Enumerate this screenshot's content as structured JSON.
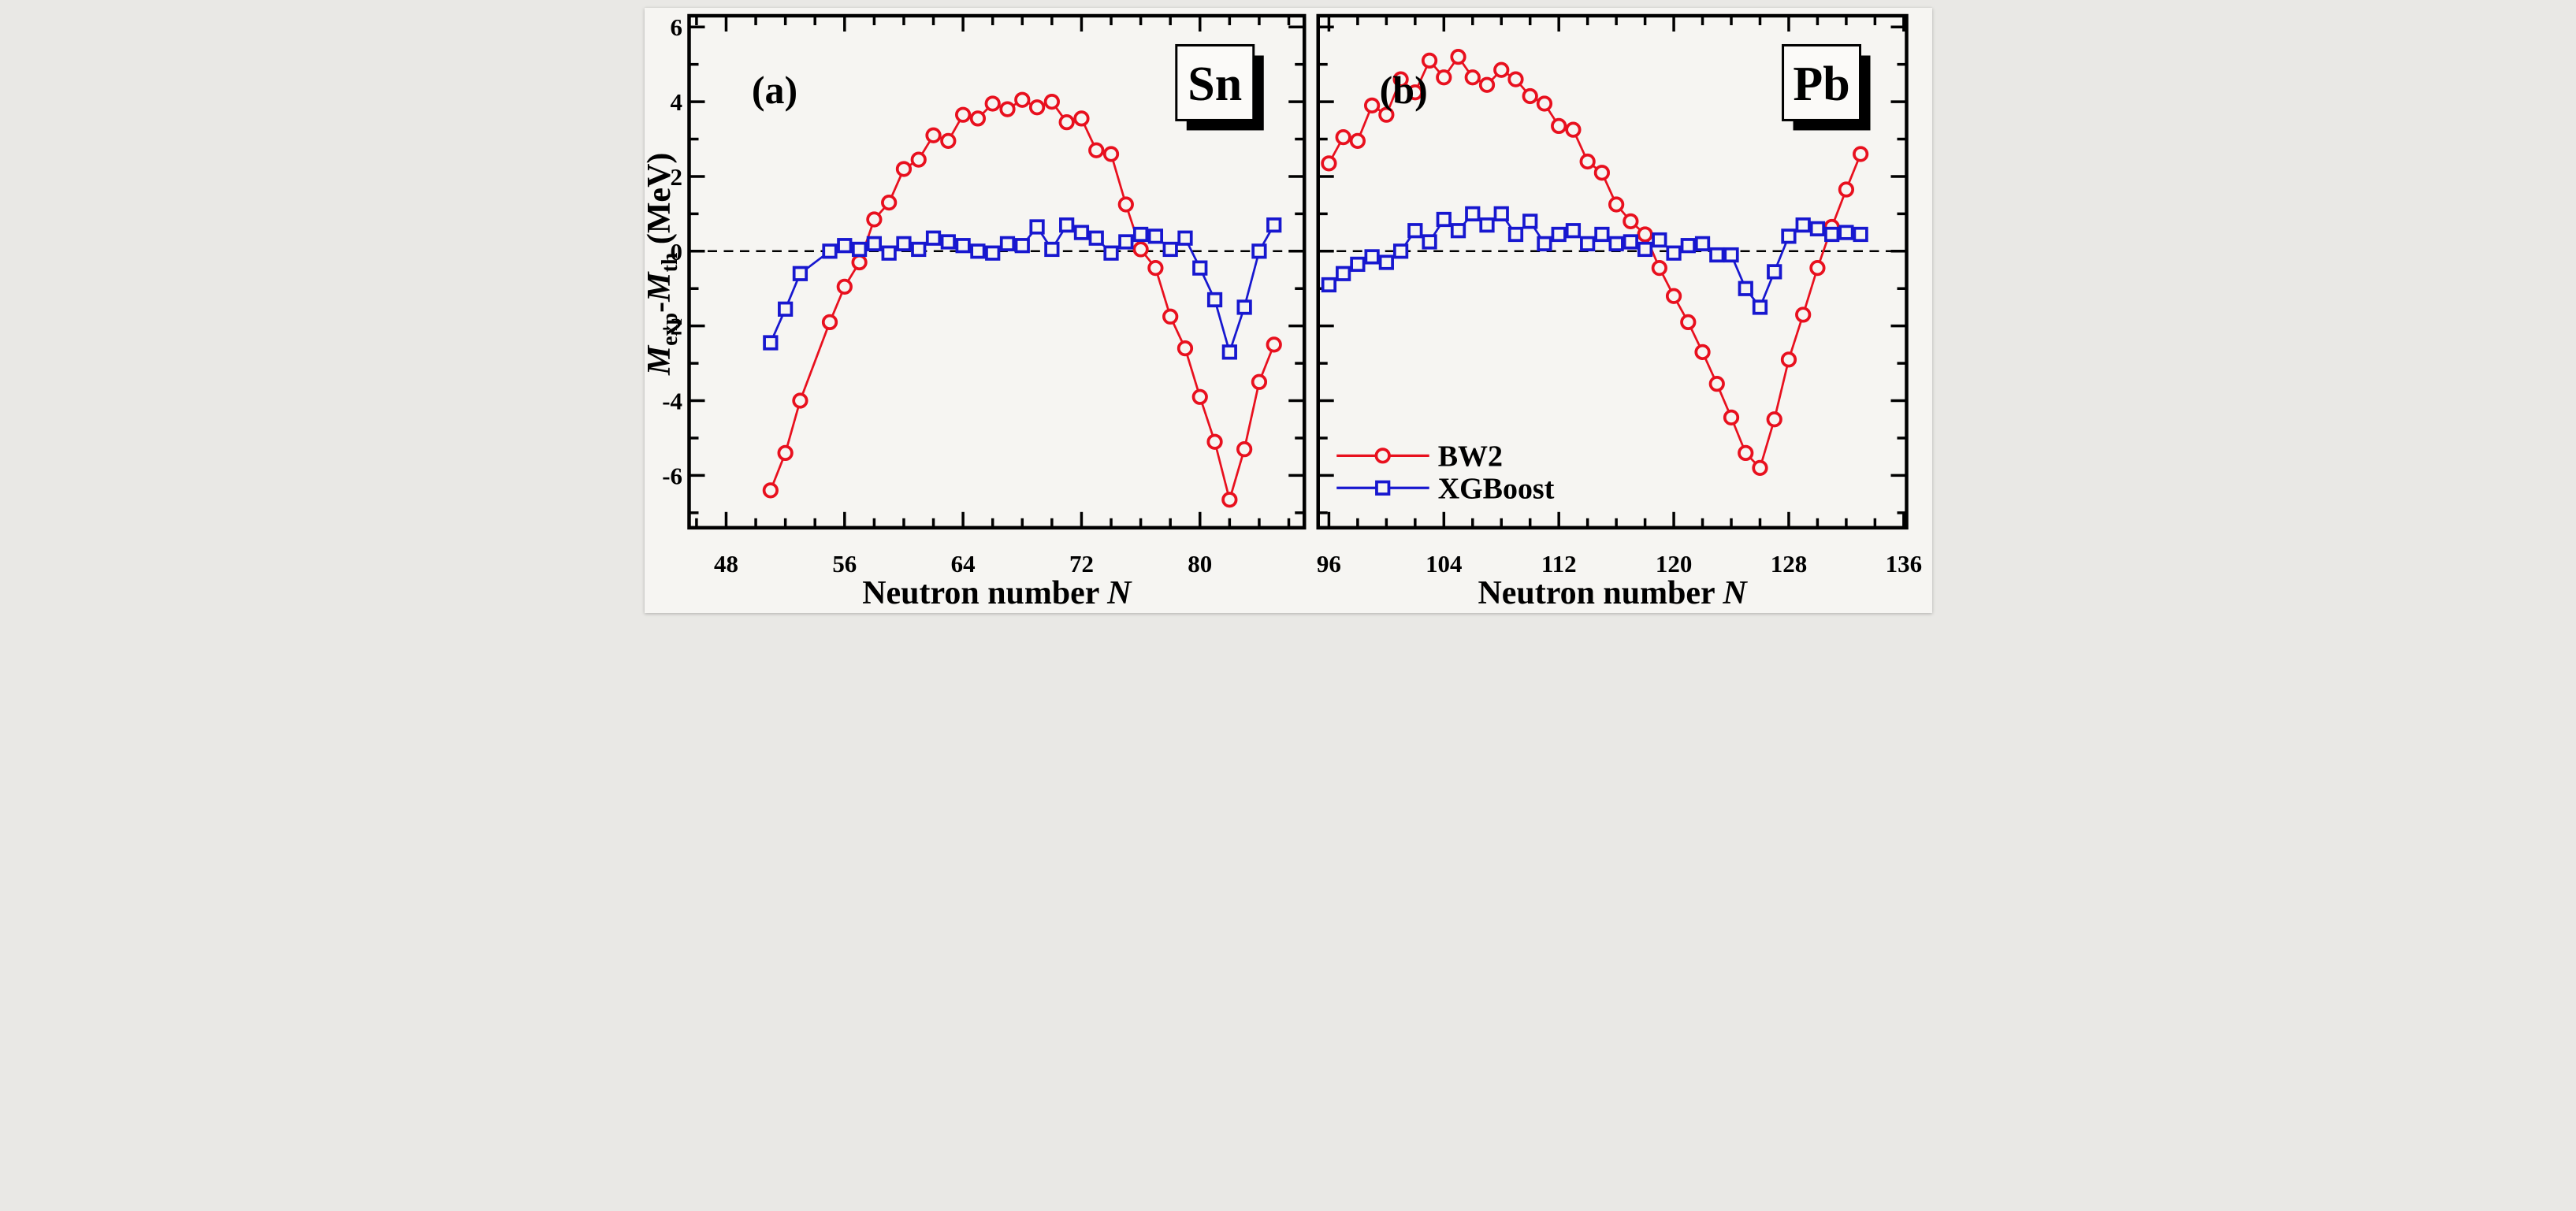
{
  "figure": {
    "background": "#f6f5f2",
    "frame_color": "#000000",
    "zero_line_color": "#000000",
    "y_axis_label": {
      "m1": "M",
      "sub1": "exp",
      "minus": "-",
      "m2": "M",
      "sub2": "th",
      "unit": " (MeV)"
    },
    "x_axis_title": {
      "text": "Neutron number ",
      "italic_symbol": "N"
    }
  },
  "legend": {
    "items": [
      {
        "label": "BW2",
        "color": "#e8101e",
        "marker": "circle"
      },
      {
        "label": "XGBoost",
        "color": "#1717cf",
        "marker": "square"
      }
    ]
  },
  "chart_data": [
    {
      "type": "line",
      "panel_label": "(a)",
      "element_label": "Sn",
      "xlabel": "Neutron number N",
      "ylabel": "Mexp-Mth (MeV)",
      "xlim": [
        45.5,
        87.05
      ],
      "ylim": [
        -7.4,
        6.3
      ],
      "x_ticks_major": [
        48,
        56,
        64,
        72,
        80
      ],
      "x_tick_minor_step": 2,
      "y_ticks_major": [
        -6,
        -4,
        -2,
        0,
        2,
        4,
        6
      ],
      "y_tick_minor_step": 1,
      "grid": false,
      "zero_line": 0,
      "series": [
        {
          "name": "BW2",
          "color": "#e8101e",
          "marker": "circle",
          "points": [
            [
              51,
              -6.4
            ],
            [
              52,
              -5.4
            ],
            [
              53,
              -4.0
            ],
            [
              55,
              -1.9
            ],
            [
              56,
              -0.95
            ],
            [
              57,
              -0.3
            ],
            [
              58,
              0.85
            ],
            [
              59,
              1.3
            ],
            [
              60,
              2.2
            ],
            [
              61,
              2.45
            ],
            [
              62,
              3.1
            ],
            [
              63,
              2.95
            ],
            [
              64,
              3.65
            ],
            [
              65,
              3.55
            ],
            [
              66,
              3.95
            ],
            [
              67,
              3.8
            ],
            [
              68,
              4.05
            ],
            [
              69,
              3.85
            ],
            [
              70,
              4.0
            ],
            [
              71,
              3.45
            ],
            [
              72,
              3.55
            ],
            [
              73,
              2.7
            ],
            [
              74,
              2.6
            ],
            [
              75,
              1.25
            ],
            [
              76,
              0.05
            ],
            [
              77,
              -0.45
            ],
            [
              78,
              -1.75
            ],
            [
              79,
              -2.6
            ],
            [
              80,
              -3.9
            ],
            [
              81,
              -5.1
            ],
            [
              82,
              -6.65
            ],
            [
              83,
              -5.3
            ],
            [
              84,
              -3.5
            ],
            [
              85,
              -2.5
            ]
          ]
        },
        {
          "name": "XGBoost",
          "color": "#1717cf",
          "marker": "square",
          "points": [
            [
              51,
              -2.45
            ],
            [
              52,
              -1.55
            ],
            [
              53,
              -0.6
            ],
            [
              55,
              0.0
            ],
            [
              56,
              0.15
            ],
            [
              57,
              0.05
            ],
            [
              58,
              0.2
            ],
            [
              59,
              -0.05
            ],
            [
              60,
              0.2
            ],
            [
              61,
              0.05
            ],
            [
              62,
              0.35
            ],
            [
              63,
              0.25
            ],
            [
              64,
              0.15
            ],
            [
              65,
              0.0
            ],
            [
              66,
              -0.05
            ],
            [
              67,
              0.2
            ],
            [
              68,
              0.15
            ],
            [
              69,
              0.65
            ],
            [
              70,
              0.05
            ],
            [
              71,
              0.7
            ],
            [
              72,
              0.5
            ],
            [
              73,
              0.35
            ],
            [
              74,
              -0.05
            ],
            [
              75,
              0.25
            ],
            [
              76,
              0.45
            ],
            [
              77,
              0.4
            ],
            [
              78,
              0.05
            ],
            [
              79,
              0.35
            ],
            [
              80,
              -0.45
            ],
            [
              81,
              -1.3
            ],
            [
              82,
              -2.7
            ],
            [
              83,
              -1.5
            ],
            [
              84,
              0.0
            ],
            [
              85,
              0.7
            ]
          ]
        }
      ]
    },
    {
      "type": "line",
      "panel_label": "(b)",
      "element_label": "Pb",
      "xlabel": "Neutron number N",
      "ylabel": "Mexp-Mth (MeV)",
      "xlim": [
        95.25,
        136.2
      ],
      "ylim": [
        -7.4,
        6.3
      ],
      "x_ticks_major": [
        96,
        104,
        112,
        120,
        128,
        136
      ],
      "x_tick_minor_step": 2,
      "y_ticks_major": [
        -6,
        -4,
        -2,
        0,
        2,
        4,
        6
      ],
      "y_tick_minor_step": 1,
      "grid": false,
      "zero_line": 0,
      "series": [
        {
          "name": "BW2",
          "color": "#e8101e",
          "marker": "circle",
          "points": [
            [
              96,
              2.35
            ],
            [
              97,
              3.05
            ],
            [
              98,
              2.95
            ],
            [
              99,
              3.9
            ],
            [
              100,
              3.65
            ],
            [
              101,
              4.6
            ],
            [
              102,
              4.25
            ],
            [
              103,
              5.1
            ],
            [
              104,
              4.65
            ],
            [
              105,
              5.2
            ],
            [
              106,
              4.65
            ],
            [
              107,
              4.45
            ],
            [
              108,
              4.85
            ],
            [
              109,
              4.6
            ],
            [
              110,
              4.15
            ],
            [
              111,
              3.95
            ],
            [
              112,
              3.35
            ],
            [
              113,
              3.25
            ],
            [
              114,
              2.4
            ],
            [
              115,
              2.1
            ],
            [
              116,
              1.25
            ],
            [
              117,
              0.8
            ],
            [
              118,
              0.45
            ],
            [
              119,
              -0.45
            ],
            [
              120,
              -1.2
            ],
            [
              121,
              -1.9
            ],
            [
              122,
              -2.7
            ],
            [
              123,
              -3.55
            ],
            [
              124,
              -4.45
            ],
            [
              125,
              -5.4
            ],
            [
              126,
              -5.8
            ],
            [
              127,
              -4.5
            ],
            [
              128,
              -2.9
            ],
            [
              129,
              -1.7
            ],
            [
              130,
              -0.45
            ],
            [
              131,
              0.65
            ],
            [
              132,
              1.65
            ],
            [
              133,
              2.6
            ]
          ]
        },
        {
          "name": "XGBoost",
          "color": "#1717cf",
          "marker": "square",
          "points": [
            [
              96,
              -0.9
            ],
            [
              97,
              -0.6
            ],
            [
              98,
              -0.35
            ],
            [
              99,
              -0.15
            ],
            [
              100,
              -0.3
            ],
            [
              101,
              0.0
            ],
            [
              102,
              0.55
            ],
            [
              103,
              0.25
            ],
            [
              104,
              0.85
            ],
            [
              105,
              0.55
            ],
            [
              106,
              1.0
            ],
            [
              107,
              0.7
            ],
            [
              108,
              1.0
            ],
            [
              109,
              0.45
            ],
            [
              110,
              0.8
            ],
            [
              111,
              0.2
            ],
            [
              112,
              0.45
            ],
            [
              113,
              0.55
            ],
            [
              114,
              0.2
            ],
            [
              115,
              0.45
            ],
            [
              116,
              0.2
            ],
            [
              117,
              0.25
            ],
            [
              118,
              0.05
            ],
            [
              119,
              0.3
            ],
            [
              120,
              -0.05
            ],
            [
              121,
              0.15
            ],
            [
              122,
              0.2
            ],
            [
              123,
              -0.1
            ],
            [
              124,
              -0.1
            ],
            [
              125,
              -1.0
            ],
            [
              126,
              -1.5
            ],
            [
              127,
              -0.55
            ],
            [
              128,
              0.4
            ],
            [
              129,
              0.7
            ],
            [
              130,
              0.6
            ],
            [
              131,
              0.45
            ],
            [
              132,
              0.5
            ],
            [
              133,
              0.45
            ]
          ]
        }
      ]
    }
  ]
}
